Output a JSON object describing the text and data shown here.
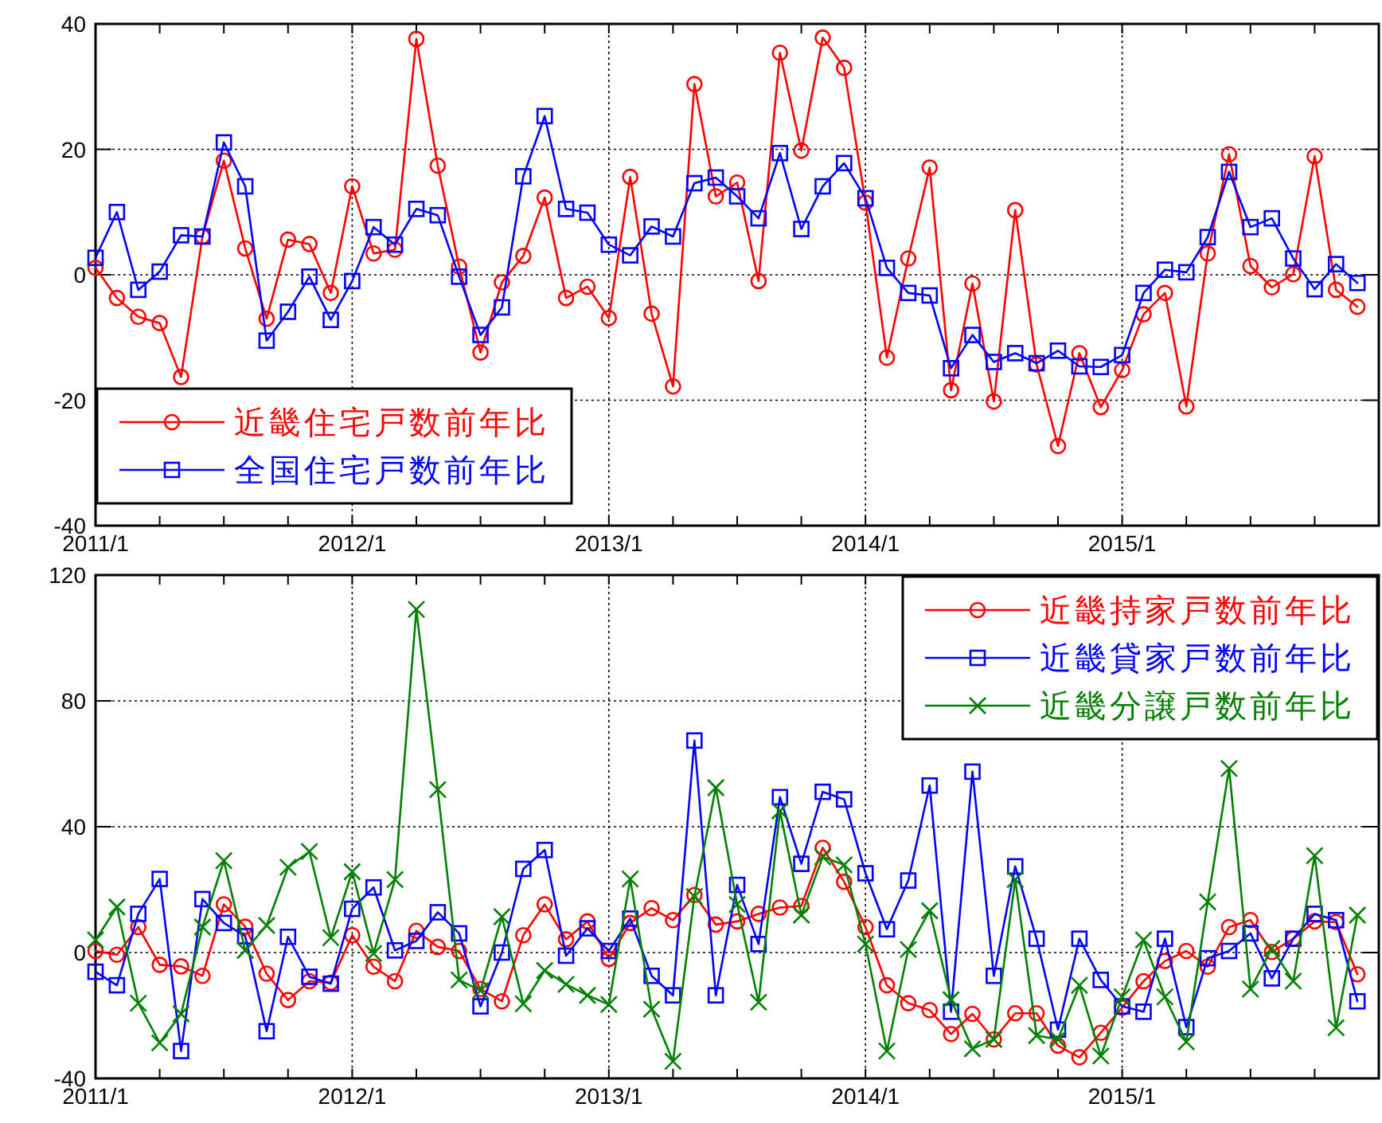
{
  "chart_data": [
    {
      "type": "line",
      "x": [
        "2011-01",
        "2011-02",
        "2011-03",
        "2011-04",
        "2011-05",
        "2011-06",
        "2011-07",
        "2011-08",
        "2011-09",
        "2011-10",
        "2011-11",
        "2011-12",
        "2012-01",
        "2012-02",
        "2012-03",
        "2012-04",
        "2012-05",
        "2012-06",
        "2012-07",
        "2012-08",
        "2012-09",
        "2012-10",
        "2012-11",
        "2012-12",
        "2013-01",
        "2013-02",
        "2013-03",
        "2013-04",
        "2013-05",
        "2013-06",
        "2013-07",
        "2013-08",
        "2013-09",
        "2013-10",
        "2013-11",
        "2013-12",
        "2014-01",
        "2014-02",
        "2014-03",
        "2014-04",
        "2014-05",
        "2014-06",
        "2014-07",
        "2014-08",
        "2014-09",
        "2014-10",
        "2014-11",
        "2014-12",
        "2015-01",
        "2015-02",
        "2015-03",
        "2015-04",
        "2015-05",
        "2015-06",
        "2015-07",
        "2015-08",
        "2015-09",
        "2015-10",
        "2015-11",
        "2015-12"
      ],
      "series": [
        {
          "name": "近畿住宅戸数前年比",
          "color": "#ff0000",
          "marker": "circle",
          "values": [
            1.1,
            -3.7,
            -6.7,
            -7.7,
            -16.3,
            6.1,
            18.2,
            4.2,
            -7.0,
            5.6,
            4.9,
            -2.9,
            14.1,
            3.4,
            4.0,
            37.6,
            17.4,
            1.3,
            -12.4,
            -1.2,
            3.0,
            12.3,
            -3.7,
            -1.9,
            -6.9,
            15.6,
            -6.2,
            -17.8,
            30.4,
            12.5,
            14.7,
            -1.0,
            35.4,
            19.8,
            37.8,
            33.0,
            11.5,
            -13.2,
            2.6,
            17.1,
            -18.4,
            -1.4,
            -20.2,
            10.3,
            -14.3,
            -27.3,
            -12.5,
            -21.1,
            -15.2,
            -6.3,
            -2.9,
            -21.0,
            3.4,
            19.2,
            1.4,
            -2.0,
            0.1,
            18.9,
            -2.4,
            -5.1
          ]
        },
        {
          "name": "全国住宅戸数前年比",
          "color": "#0000ff",
          "marker": "square",
          "values": [
            2.7,
            10.0,
            -2.4,
            0.5,
            6.3,
            6.1,
            21.1,
            14.1,
            -10.5,
            -5.9,
            -0.3,
            -7.2,
            -1.0,
            7.6,
            4.8,
            10.5,
            9.5,
            -0.3,
            -9.6,
            -5.2,
            15.7,
            25.3,
            10.5,
            9.9,
            4.8,
            3.1,
            7.7,
            6.1,
            14.6,
            15.5,
            12.5,
            9.0,
            19.4,
            7.3,
            14.1,
            17.8,
            12.2,
            1.1,
            -2.9,
            -3.3,
            -14.9,
            -9.6,
            -13.9,
            -12.5,
            -14.1,
            -12.1,
            -14.6,
            -14.7,
            -12.8,
            -2.9,
            0.8,
            0.4,
            6.0,
            16.4,
            7.6,
            9.0,
            2.6,
            -2.3,
            1.7,
            -1.3
          ]
        }
      ],
      "xlim": [
        "2011-01",
        "2016-01"
      ],
      "xticks": [
        {
          "value": "2011-01",
          "label": "2011/1"
        },
        {
          "value": "2011-04",
          "label": null
        },
        {
          "value": "2011-07",
          "label": null
        },
        {
          "value": "2011-10",
          "label": null
        },
        {
          "value": "2012-01",
          "label": "2012/1"
        },
        {
          "value": "2012-04",
          "label": null
        },
        {
          "value": "2012-07",
          "label": null
        },
        {
          "value": "2012-10",
          "label": null
        },
        {
          "value": "2013-01",
          "label": "2013/1"
        },
        {
          "value": "2013-04",
          "label": null
        },
        {
          "value": "2013-07",
          "label": null
        },
        {
          "value": "2013-10",
          "label": null
        },
        {
          "value": "2014-01",
          "label": "2014/1"
        },
        {
          "value": "2014-04",
          "label": null
        },
        {
          "value": "2014-07",
          "label": null
        },
        {
          "value": "2014-10",
          "label": null
        },
        {
          "value": "2015-01",
          "label": "2015/1"
        },
        {
          "value": "2015-04",
          "label": null
        },
        {
          "value": "2015-07",
          "label": null
        },
        {
          "value": "2015-10",
          "label": null
        }
      ],
      "ylim": [
        -40,
        40
      ],
      "yticks": [
        -40,
        -20,
        0,
        20,
        40
      ],
      "grid": true,
      "legend": "bottom left",
      "line_style": "solid"
    },
    {
      "type": "line",
      "x": [
        "2011-01",
        "2011-02",
        "2011-03",
        "2011-04",
        "2011-05",
        "2011-06",
        "2011-07",
        "2011-08",
        "2011-09",
        "2011-10",
        "2011-11",
        "2011-12",
        "2012-01",
        "2012-02",
        "2012-03",
        "2012-04",
        "2012-05",
        "2012-06",
        "2012-07",
        "2012-08",
        "2012-09",
        "2012-10",
        "2012-11",
        "2012-12",
        "2013-01",
        "2013-02",
        "2013-03",
        "2013-04",
        "2013-05",
        "2013-06",
        "2013-07",
        "2013-08",
        "2013-09",
        "2013-10",
        "2013-11",
        "2013-12",
        "2014-01",
        "2014-02",
        "2014-03",
        "2014-04",
        "2014-05",
        "2014-06",
        "2014-07",
        "2014-08",
        "2014-09",
        "2014-10",
        "2014-11",
        "2014-12",
        "2015-01",
        "2015-02",
        "2015-03",
        "2015-04",
        "2015-05",
        "2015-06",
        "2015-07",
        "2015-08",
        "2015-09",
        "2015-10",
        "2015-11",
        "2015-12"
      ],
      "series": [
        {
          "name": "近畿持家戸数前年比",
          "color": "#ff0000",
          "marker": "circle",
          "values": [
            0.5,
            -0.7,
            8.1,
            -3.9,
            -4.4,
            -7.4,
            15.3,
            8.2,
            -6.7,
            -15.1,
            -9.1,
            -9.6,
            5.5,
            -4.5,
            -9.1,
            6.9,
            1.8,
            0.5,
            -11.6,
            -15.5,
            5.5,
            15.3,
            4.2,
            9.9,
            -2.0,
            9.4,
            14.1,
            10.3,
            18.3,
            8.9,
            9.9,
            12.3,
            14.3,
            14.8,
            33.3,
            22.5,
            8.1,
            -10.4,
            -16.1,
            -18.3,
            -25.9,
            -19.5,
            -27.6,
            -19.3,
            -19.3,
            -29.6,
            -33.3,
            -25.5,
            -17.5,
            -9.1,
            -2.7,
            0.5,
            -4.5,
            8.1,
            10.3,
            0.2,
            4.4,
            9.9,
            9.7,
            -6.9
          ]
        },
        {
          "name": "近畿貸家戸数前年比",
          "color": "#0000ff",
          "marker": "square",
          "values": [
            -6.1,
            -10.4,
            12.3,
            23.4,
            -31.3,
            17.0,
            9.4,
            5.2,
            -25.0,
            5.0,
            -7.7,
            -9.9,
            13.9,
            20.7,
            0.7,
            3.7,
            12.8,
            6.1,
            -17.1,
            0.0,
            26.6,
            32.6,
            -1.0,
            7.7,
            0.5,
            10.8,
            -7.4,
            -13.6,
            67.4,
            -13.6,
            21.5,
            2.7,
            49.4,
            28.2,
            51.1,
            48.7,
            25.2,
            7.4,
            22.9,
            53.1,
            -18.8,
            57.5,
            -7.4,
            27.4,
            4.4,
            -24.5,
            4.4,
            -8.7,
            -17.1,
            -18.8,
            4.4,
            -23.7,
            -1.8,
            0.5,
            6.1,
            -8.2,
            4.4,
            12.3,
            10.3,
            -15.5
          ]
        },
        {
          "name": "近畿分譲戸数前年比",
          "color": "#008000",
          "marker": "cross",
          "values": [
            4.0,
            14.5,
            -16.1,
            -28.7,
            -19.5,
            8.1,
            29.2,
            0.7,
            8.6,
            27.1,
            32.1,
            4.7,
            25.7,
            -0.3,
            23.2,
            109.1,
            51.8,
            -8.7,
            -12.1,
            11.4,
            -16.3,
            -5.7,
            -10.1,
            -13.6,
            -16.5,
            23.4,
            -18.0,
            -34.6,
            17.8,
            52.4,
            15.3,
            -15.8,
            45.0,
            11.9,
            30.4,
            27.9,
            2.7,
            -31.3,
            1.0,
            13.3,
            -15.0,
            -30.6,
            -27.6,
            23.2,
            -26.4,
            -27.6,
            -10.4,
            -32.9,
            -14.1,
            4.0,
            -14.1,
            -28.4,
            16.1,
            58.5,
            -11.6,
            1.3,
            -9.1,
            30.8,
            -23.9,
            11.9
          ]
        }
      ],
      "xlim": [
        "2011-01",
        "2016-01"
      ],
      "xticks": [
        {
          "value": "2011-01",
          "label": "2011/1"
        },
        {
          "value": "2011-04",
          "label": null
        },
        {
          "value": "2011-07",
          "label": null
        },
        {
          "value": "2011-10",
          "label": null
        },
        {
          "value": "2012-01",
          "label": "2012/1"
        },
        {
          "value": "2012-04",
          "label": null
        },
        {
          "value": "2012-07",
          "label": null
        },
        {
          "value": "2012-10",
          "label": null
        },
        {
          "value": "2013-01",
          "label": "2013/1"
        },
        {
          "value": "2013-04",
          "label": null
        },
        {
          "value": "2013-07",
          "label": null
        },
        {
          "value": "2013-10",
          "label": null
        },
        {
          "value": "2014-01",
          "label": "2014/1"
        },
        {
          "value": "2014-04",
          "label": null
        },
        {
          "value": "2014-07",
          "label": null
        },
        {
          "value": "2014-10",
          "label": null
        },
        {
          "value": "2015-01",
          "label": "2015/1"
        },
        {
          "value": "2015-04",
          "label": null
        },
        {
          "value": "2015-07",
          "label": null
        },
        {
          "value": "2015-10",
          "label": null
        }
      ],
      "ylim": [
        -40,
        120
      ],
      "yticks": [
        -40,
        0,
        40,
        80,
        120
      ],
      "grid": true,
      "legend": "top right",
      "line_style": "solid"
    }
  ]
}
